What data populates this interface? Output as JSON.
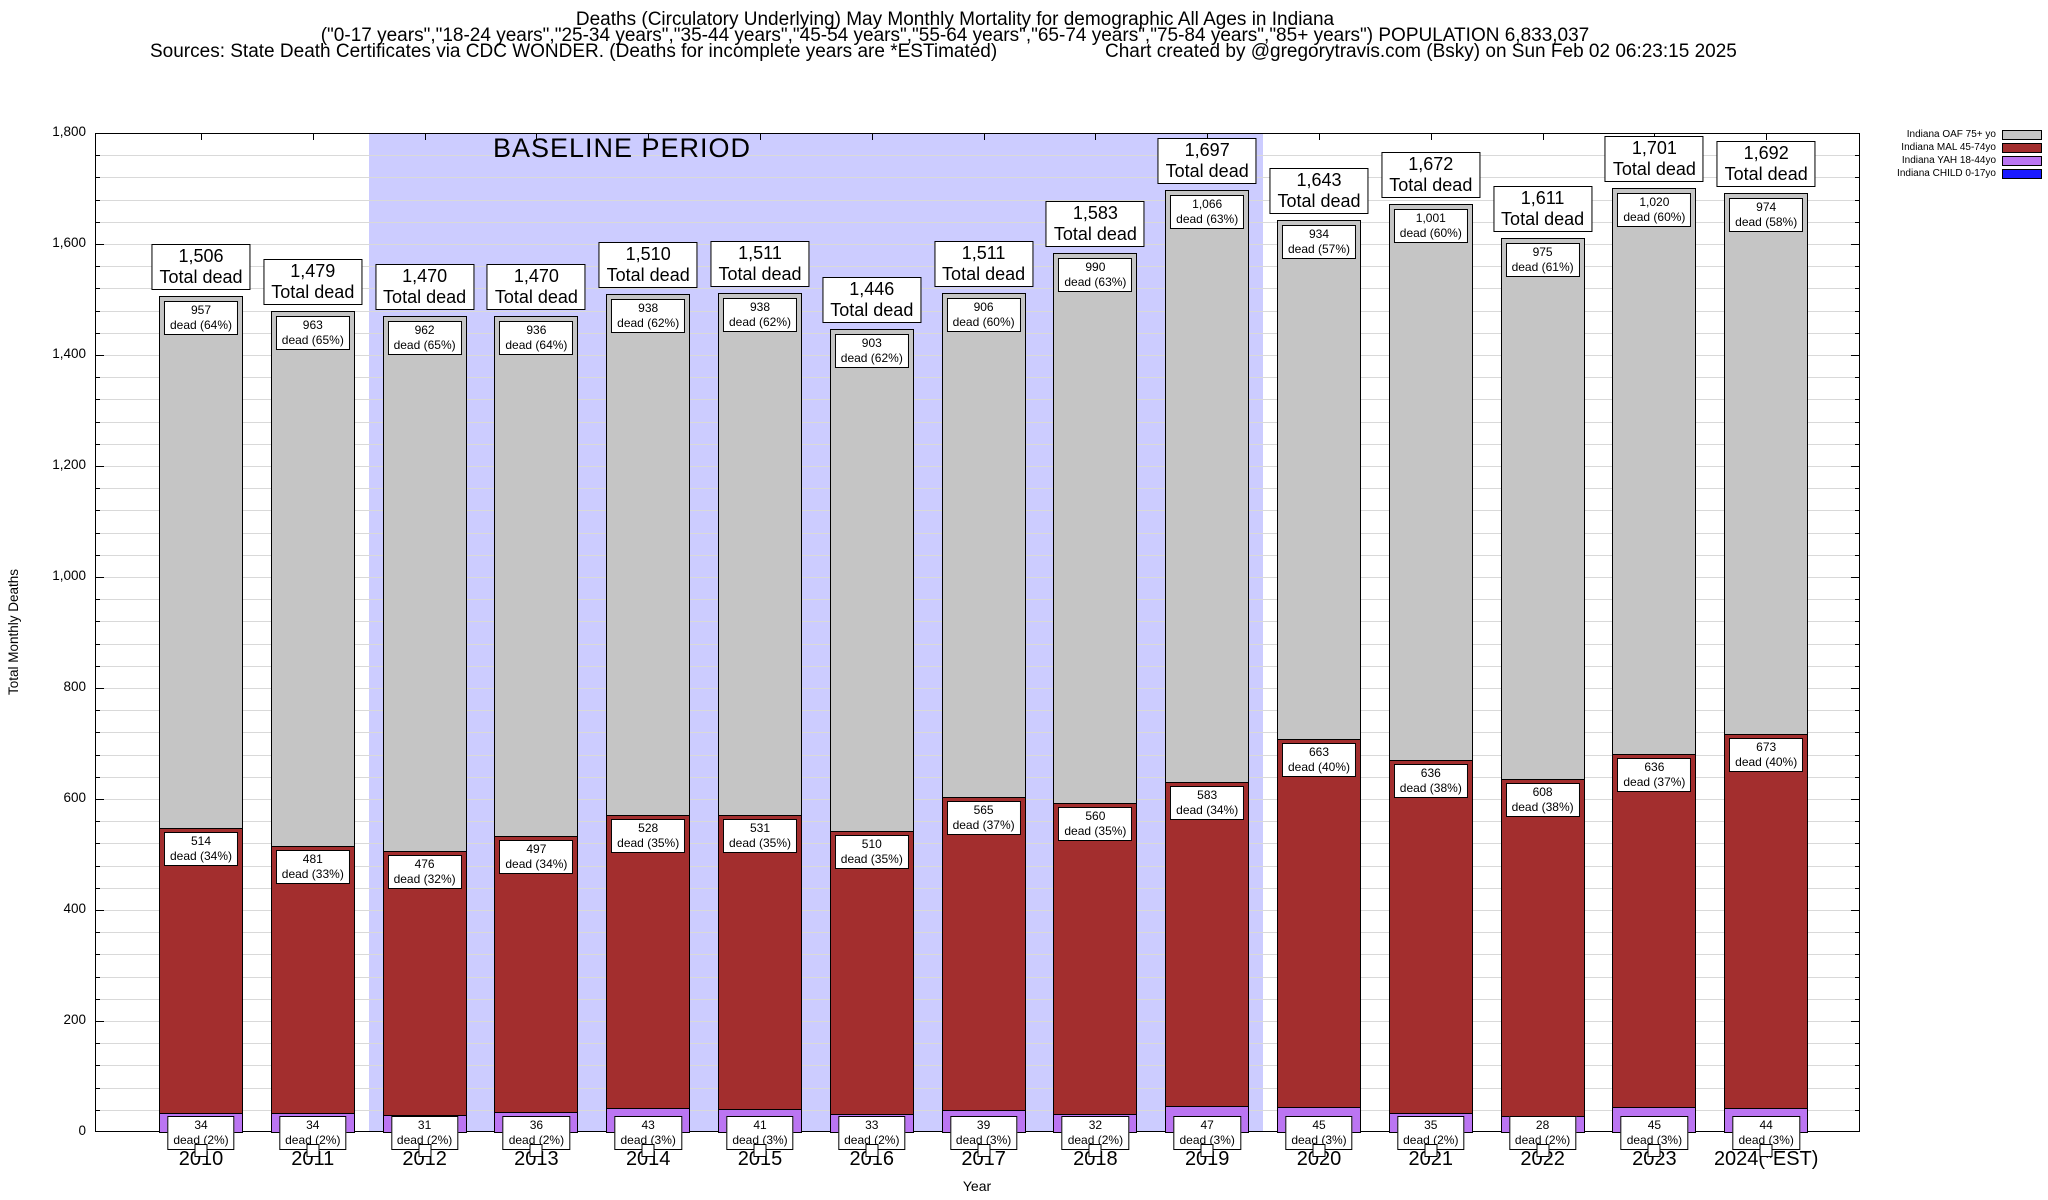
{
  "header": {
    "title_line1": "Deaths (Circulatory Underlying) May Monthly Mortality for demographic All Ages in Indiana",
    "title_line2": "(\"0-17 years\",\"18-24 years\",\"25-34 years\",\"35-44 years\",\"45-54 years\",\"55-64 years\",\"65-74 years\",\"75-84 years\",\"85+ years\") POPULATION 6,833,037",
    "sources": "Sources: State Death Certificates via CDC WONDER. (Deaths for incomplete years are *ESTimated)",
    "credit": "Chart created by @gregorytravis.com (Bsky) on Sun Feb 02 06:23:15 2025"
  },
  "chart_data": {
    "type": "bar",
    "stacked": true,
    "title": "Deaths (Circulatory Underlying) May Monthly Mortality for demographic All Ages in Indiana",
    "xlabel": "Year",
    "ylabel": "Total Monthly Deaths",
    "ylim": [
      0,
      1800
    ],
    "ytick_interval": 200,
    "minor_grid_interval": 40,
    "yticks": [
      "0",
      "200",
      "400",
      "600",
      "800",
      "1,000",
      "1,200",
      "1,400",
      "1,600",
      "1,800"
    ],
    "grid": true,
    "legend_position": "top-right",
    "categories": [
      "2010",
      "2011",
      "2012",
      "2013",
      "2014",
      "2015",
      "2016",
      "2017",
      "2018",
      "2019",
      "2020",
      "2021",
      "2022",
      "2023",
      "2024(*EST)"
    ],
    "totals": [
      1506,
      1479,
      1470,
      1470,
      1510,
      1511,
      1446,
      1511,
      1583,
      1697,
      1643,
      1672,
      1611,
      1701,
      1692
    ],
    "total_label_suffix": "Total dead",
    "baseline_period": {
      "label": "BASELINE PERIOD",
      "start_year": "2012",
      "end_year": "2019"
    },
    "series": [
      {
        "name": "Indiana OAF 75+ yo",
        "color": "#c5c5c5",
        "values": [
          957,
          963,
          962,
          936,
          938,
          938,
          903,
          906,
          990,
          1066,
          934,
          1001,
          975,
          1020,
          974
        ],
        "percents": [
          64,
          65,
          65,
          64,
          62,
          62,
          62,
          60,
          63,
          63,
          57,
          60,
          61,
          60,
          58
        ]
      },
      {
        "name": "Indiana MAL 45-74yo",
        "color": "#a32e2e",
        "values": [
          514,
          481,
          476,
          497,
          528,
          531,
          510,
          565,
          560,
          583,
          663,
          636,
          608,
          636,
          673
        ],
        "percents": [
          34,
          33,
          32,
          34,
          35,
          35,
          35,
          37,
          35,
          34,
          40,
          38,
          38,
          37,
          40
        ]
      },
      {
        "name": "Indiana YAH 18-44yo",
        "color": "#bb75f2",
        "values": [
          34,
          34,
          31,
          36,
          43,
          41,
          33,
          39,
          32,
          47,
          45,
          35,
          28,
          45,
          44
        ],
        "percents": [
          2,
          2,
          2,
          2,
          3,
          3,
          2,
          3,
          2,
          3,
          3,
          2,
          2,
          3,
          3
        ]
      },
      {
        "name": "Indiana CHILD 0-17yo",
        "color": "#1a1aff"
      }
    ]
  }
}
